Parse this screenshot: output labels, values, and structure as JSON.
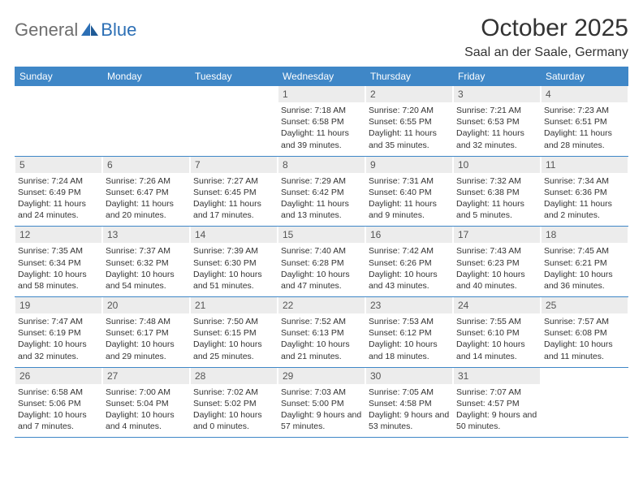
{
  "logo": {
    "text1": "General",
    "text2": "Blue"
  },
  "title": "October 2025",
  "location": "Saal an der Saale, Germany",
  "colors": {
    "header_bg": "#3f87c7",
    "header_text": "#ffffff",
    "daynum_bg": "#ececec",
    "border": "#3f87c7",
    "body_text": "#333333",
    "logo_gray": "#6e6e6e",
    "logo_blue": "#2c6fb5"
  },
  "typography": {
    "title_fontsize": 30,
    "location_fontsize": 16,
    "dayheader_fontsize": 12,
    "daynum_fontsize": 12,
    "cell_fontsize": 10.5
  },
  "day_names": [
    "Sunday",
    "Monday",
    "Tuesday",
    "Wednesday",
    "Thursday",
    "Friday",
    "Saturday"
  ],
  "weeks": [
    [
      null,
      null,
      null,
      {
        "n": "1",
        "sr": "7:18 AM",
        "ss": "6:58 PM",
        "dh": "11",
        "dm": "39"
      },
      {
        "n": "2",
        "sr": "7:20 AM",
        "ss": "6:55 PM",
        "dh": "11",
        "dm": "35"
      },
      {
        "n": "3",
        "sr": "7:21 AM",
        "ss": "6:53 PM",
        "dh": "11",
        "dm": "32"
      },
      {
        "n": "4",
        "sr": "7:23 AM",
        "ss": "6:51 PM",
        "dh": "11",
        "dm": "28"
      }
    ],
    [
      {
        "n": "5",
        "sr": "7:24 AM",
        "ss": "6:49 PM",
        "dh": "11",
        "dm": "24"
      },
      {
        "n": "6",
        "sr": "7:26 AM",
        "ss": "6:47 PM",
        "dh": "11",
        "dm": "20"
      },
      {
        "n": "7",
        "sr": "7:27 AM",
        "ss": "6:45 PM",
        "dh": "11",
        "dm": "17"
      },
      {
        "n": "8",
        "sr": "7:29 AM",
        "ss": "6:42 PM",
        "dh": "11",
        "dm": "13"
      },
      {
        "n": "9",
        "sr": "7:31 AM",
        "ss": "6:40 PM",
        "dh": "11",
        "dm": "9"
      },
      {
        "n": "10",
        "sr": "7:32 AM",
        "ss": "6:38 PM",
        "dh": "11",
        "dm": "5"
      },
      {
        "n": "11",
        "sr": "7:34 AM",
        "ss": "6:36 PM",
        "dh": "11",
        "dm": "2"
      }
    ],
    [
      {
        "n": "12",
        "sr": "7:35 AM",
        "ss": "6:34 PM",
        "dh": "10",
        "dm": "58"
      },
      {
        "n": "13",
        "sr": "7:37 AM",
        "ss": "6:32 PM",
        "dh": "10",
        "dm": "54"
      },
      {
        "n": "14",
        "sr": "7:39 AM",
        "ss": "6:30 PM",
        "dh": "10",
        "dm": "51"
      },
      {
        "n": "15",
        "sr": "7:40 AM",
        "ss": "6:28 PM",
        "dh": "10",
        "dm": "47"
      },
      {
        "n": "16",
        "sr": "7:42 AM",
        "ss": "6:26 PM",
        "dh": "10",
        "dm": "43"
      },
      {
        "n": "17",
        "sr": "7:43 AM",
        "ss": "6:23 PM",
        "dh": "10",
        "dm": "40"
      },
      {
        "n": "18",
        "sr": "7:45 AM",
        "ss": "6:21 PM",
        "dh": "10",
        "dm": "36"
      }
    ],
    [
      {
        "n": "19",
        "sr": "7:47 AM",
        "ss": "6:19 PM",
        "dh": "10",
        "dm": "32"
      },
      {
        "n": "20",
        "sr": "7:48 AM",
        "ss": "6:17 PM",
        "dh": "10",
        "dm": "29"
      },
      {
        "n": "21",
        "sr": "7:50 AM",
        "ss": "6:15 PM",
        "dh": "10",
        "dm": "25"
      },
      {
        "n": "22",
        "sr": "7:52 AM",
        "ss": "6:13 PM",
        "dh": "10",
        "dm": "21"
      },
      {
        "n": "23",
        "sr": "7:53 AM",
        "ss": "6:12 PM",
        "dh": "10",
        "dm": "18"
      },
      {
        "n": "24",
        "sr": "7:55 AM",
        "ss": "6:10 PM",
        "dh": "10",
        "dm": "14"
      },
      {
        "n": "25",
        "sr": "7:57 AM",
        "ss": "6:08 PM",
        "dh": "10",
        "dm": "11"
      }
    ],
    [
      {
        "n": "26",
        "sr": "6:58 AM",
        "ss": "5:06 PM",
        "dh": "10",
        "dm": "7"
      },
      {
        "n": "27",
        "sr": "7:00 AM",
        "ss": "5:04 PM",
        "dh": "10",
        "dm": "4"
      },
      {
        "n": "28",
        "sr": "7:02 AM",
        "ss": "5:02 PM",
        "dh": "10",
        "dm": "0"
      },
      {
        "n": "29",
        "sr": "7:03 AM",
        "ss": "5:00 PM",
        "dh": "9",
        "dm": "57"
      },
      {
        "n": "30",
        "sr": "7:05 AM",
        "ss": "4:58 PM",
        "dh": "9",
        "dm": "53"
      },
      {
        "n": "31",
        "sr": "7:07 AM",
        "ss": "4:57 PM",
        "dh": "9",
        "dm": "50"
      },
      null
    ]
  ]
}
